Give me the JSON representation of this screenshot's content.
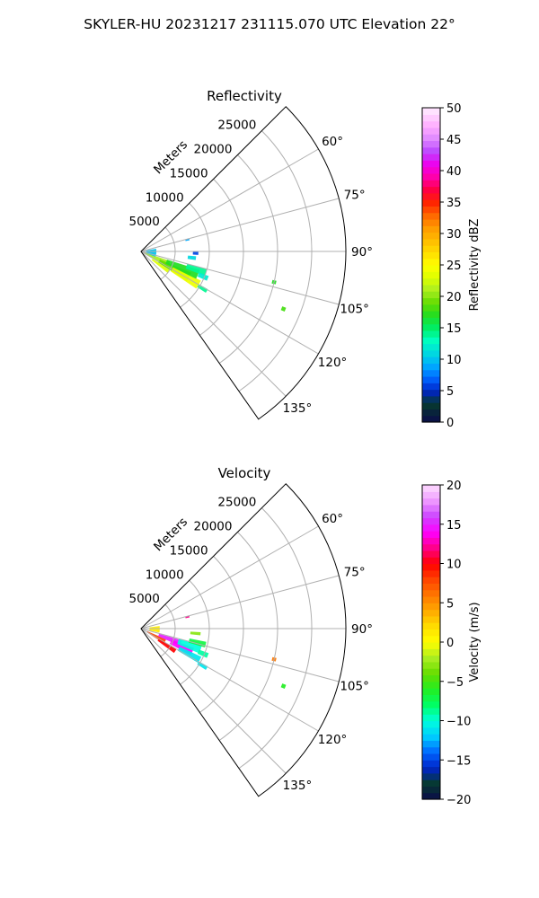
{
  "figure": {
    "title": "SKYLER-HU  20231217  231115.070 UTC Elevation 22°"
  },
  "chart_data": [
    {
      "type": "polar-sector",
      "title": "Reflectivity",
      "radial_axis_label": "Meters",
      "radial_ticks": [
        5000,
        10000,
        15000,
        20000,
        25000
      ],
      "radial_max": 30000,
      "angle_ticks": [
        "60°",
        "75°",
        "90°",
        "105°",
        "120°",
        "135°"
      ],
      "angle_range_deg": [
        45,
        145
      ],
      "colorbar": {
        "label": "Reflectivity dBZ",
        "vmin": 0,
        "vmax": 50,
        "ticks": [
          "0",
          "5",
          "10",
          "15",
          "20",
          "25",
          "30",
          "35",
          "40",
          "45",
          "50"
        ]
      },
      "echoes": [
        {
          "az": 115,
          "r": 2500,
          "az_w": 14,
          "r_w": 4000,
          "value": 21
        },
        {
          "az": 118,
          "r": 5500,
          "az_w": 10,
          "r_w": 5000,
          "value": 19
        },
        {
          "az": 120,
          "r": 7500,
          "az_w": 8,
          "r_w": 4500,
          "value": 24
        },
        {
          "az": 112,
          "r": 6500,
          "az_w": 9,
          "r_w": 5000,
          "value": 17
        },
        {
          "az": 108,
          "r": 8500,
          "az_w": 6,
          "r_w": 3000,
          "value": 14
        },
        {
          "az": 126,
          "r": 3500,
          "az_w": 6,
          "r_w": 3000,
          "value": 23
        },
        {
          "az": 95,
          "r": 1500,
          "az_w": 30,
          "r_w": 1500,
          "value": 10
        },
        {
          "az": 92,
          "r": 8000,
          "az_w": 3,
          "r_w": 800,
          "value": 6
        },
        {
          "az": 97,
          "r": 7500,
          "az_w": 4,
          "r_w": 1200,
          "value": 11
        },
        {
          "az": 112,
          "r": 9800,
          "az_w": 4,
          "r_w": 1500,
          "value": 12
        },
        {
          "az": 121,
          "r": 10500,
          "az_w": 3,
          "r_w": 1500,
          "value": 14
        },
        {
          "az": 76,
          "r": 7000,
          "az_w": 2,
          "r_w": 600,
          "value": 9
        },
        {
          "az": 103,
          "r": 20000,
          "az_w": 1.5,
          "r_w": 600,
          "value": 17
        },
        {
          "az": 112,
          "r": 22500,
          "az_w": 1.5,
          "r_w": 600,
          "value": 18
        }
      ]
    },
    {
      "type": "polar-sector",
      "title": "Velocity",
      "radial_axis_label": "Meters",
      "radial_ticks": [
        5000,
        10000,
        15000,
        20000,
        25000
      ],
      "radial_max": 30000,
      "angle_ticks": [
        "60°",
        "75°",
        "90°",
        "105°",
        "120°",
        "135°"
      ],
      "angle_range_deg": [
        45,
        145
      ],
      "colorbar": {
        "label": "Velocity (m/s)",
        "vmin": -20,
        "vmax": 20,
        "ticks": [
          "−20",
          "−15",
          "−10",
          "−5",
          "0",
          "5",
          "10",
          "15",
          "20"
        ]
      },
      "echoes": [
        {
          "az": 118,
          "r": 2500,
          "az_w": 10,
          "r_w": 3000,
          "value": 8
        },
        {
          "az": 123,
          "r": 4500,
          "az_w": 7,
          "r_w": 3000,
          "value": 10
        },
        {
          "az": 110,
          "r": 4500,
          "az_w": 8,
          "r_w": 3500,
          "value": 15
        },
        {
          "az": 114,
          "r": 6500,
          "az_w": 8,
          "r_w": 3500,
          "value": 14
        },
        {
          "az": 109,
          "r": 7500,
          "az_w": 8,
          "r_w": 3500,
          "value": -10
        },
        {
          "az": 118,
          "r": 8000,
          "az_w": 6,
          "r_w": 3500,
          "value": -11
        },
        {
          "az": 104,
          "r": 8500,
          "az_w": 5,
          "r_w": 2500,
          "value": -7
        },
        {
          "az": 92,
          "r": 2000,
          "az_w": 20,
          "r_w": 1500,
          "value": 1
        },
        {
          "az": 95,
          "r": 8000,
          "az_w": 3,
          "r_w": 1500,
          "value": -3
        },
        {
          "az": 112,
          "r": 9800,
          "az_w": 4,
          "r_w": 1500,
          "value": -9
        },
        {
          "az": 121,
          "r": 10500,
          "az_w": 3,
          "r_w": 1500,
          "value": -11
        },
        {
          "az": 76,
          "r": 7000,
          "az_w": 2,
          "r_w": 600,
          "value": 12
        },
        {
          "az": 103,
          "r": 20000,
          "az_w": 1.5,
          "r_w": 600,
          "value": 6
        },
        {
          "az": 112,
          "r": 22500,
          "az_w": 1.5,
          "r_w": 600,
          "value": -6
        }
      ]
    }
  ]
}
